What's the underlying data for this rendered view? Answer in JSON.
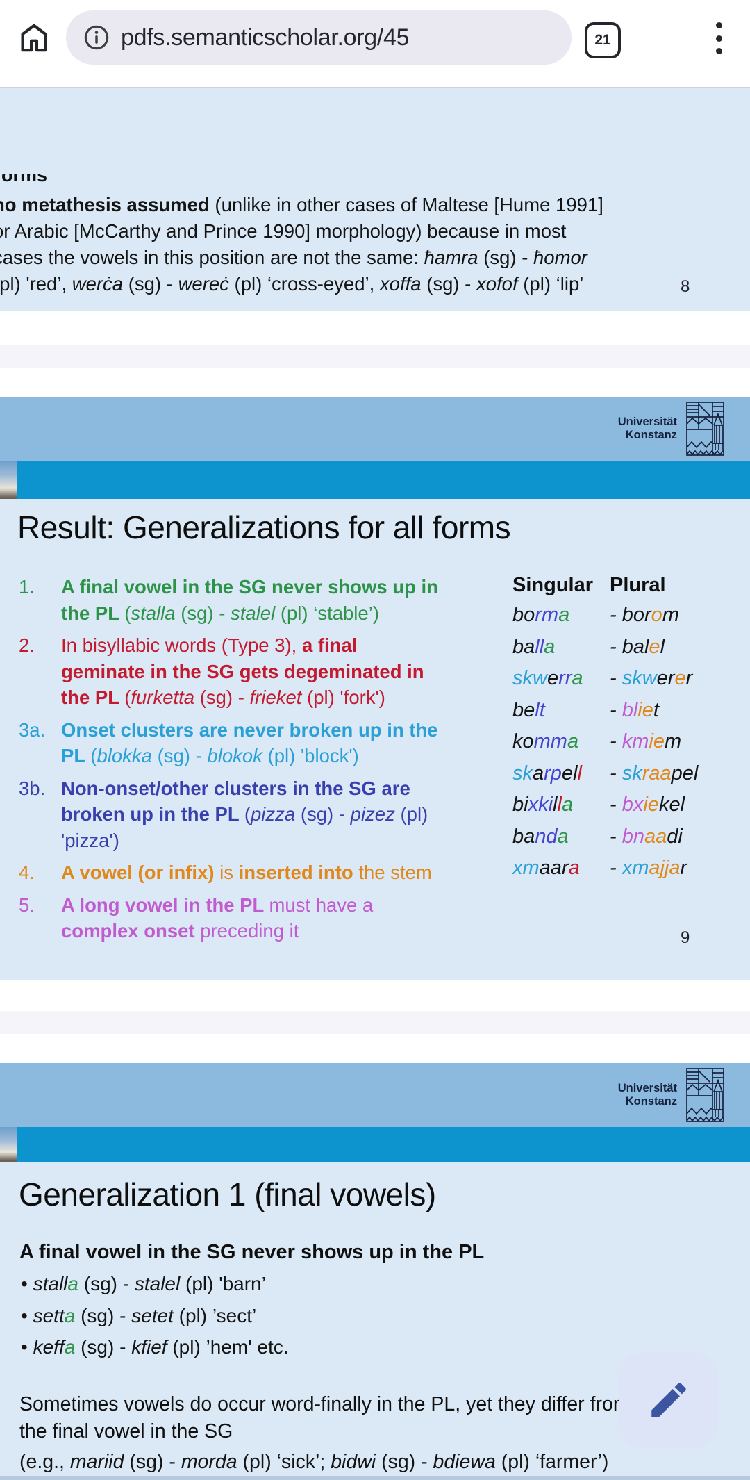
{
  "palette": {
    "k": "#141414",
    "bl": "#4444cf",
    "gr": "#2d9348",
    "cy": "#2ba0d6",
    "rd": "#c31a2f",
    "or": "#e0881c",
    "mg": "#c05ccf",
    "nv": "#3a3fae"
  },
  "chrome": {
    "url": "pdfs.semanticscholar.org/45",
    "tab_count": "21"
  },
  "slide1": {
    "fragment": "orms",
    "lines": [
      [
        {
          "t": "no metathesis assumed",
          "b": 1
        },
        {
          "t": " (unlike in other cases of Maltese [Hume 1991]"
        }
      ],
      [
        {
          "t": "or Arabic [McCarthy and Prince 1990] morphology) because in most"
        }
      ],
      [
        {
          "t": "cases the vowels in this position are not the same: "
        },
        {
          "t": "ħamra",
          "i": 1
        },
        {
          "t": " (sg) - "
        },
        {
          "t": "ħomor",
          "i": 1
        }
      ],
      [
        {
          "t": "(pl) 'red’, "
        },
        {
          "t": "werċa",
          "i": 1
        },
        {
          "t": " (sg) - "
        },
        {
          "t": "wereċ",
          "i": 1
        },
        {
          "t": " (pl) ‘cross-eyed’, "
        },
        {
          "t": "xoffa",
          "i": 1
        },
        {
          "t": " (sg) - "
        },
        {
          "t": "xofof",
          "i": 1
        },
        {
          "t": " (pl) ‘lip’"
        }
      ]
    ],
    "page_number": "8"
  },
  "university": {
    "wordmark_line1": "Universität",
    "wordmark_line2": "Konstanz"
  },
  "slide2": {
    "title": "Result: Generalizations for all forms",
    "items": [
      {
        "num": "1.",
        "color": "gr",
        "segs": [
          {
            "t": "A final vowel in the SG never shows up in the PL ",
            "b": 1
          },
          {
            "t": "("
          },
          {
            "t": "stalla",
            "i": 1
          },
          {
            "t": " (sg) - "
          },
          {
            "t": "stalel",
            "i": 1
          },
          {
            "t": " (pl) ‘stable’)"
          }
        ]
      },
      {
        "num": "2.",
        "color": "rd",
        "segs": [
          {
            "t": "In bisyllabic words (Type 3), "
          },
          {
            "t": "a final geminate in the SG gets degeminated in the PL ",
            "b": 1
          },
          {
            "t": "("
          },
          {
            "t": "furketta",
            "i": 1
          },
          {
            "t": " (sg) - "
          },
          {
            "t": "frieket",
            "i": 1
          },
          {
            "t": " (pl) 'fork')"
          }
        ]
      },
      {
        "num": "3a.",
        "color": "cy",
        "segs": [
          {
            "t": "Onset clusters are never broken up in the PL ",
            "b": 1
          },
          {
            "t": "("
          },
          {
            "t": "blokka",
            "i": 1
          },
          {
            "t": " (sg) - "
          },
          {
            "t": "blokok",
            "i": 1
          },
          {
            "t": " (pl) 'block')"
          }
        ]
      },
      {
        "num": "3b.",
        "color": "nv",
        "segs": [
          {
            "t": "Non-onset/other clusters in the SG are broken up in the PL ",
            "b": 1
          },
          {
            "t": "("
          },
          {
            "t": "pizza",
            "i": 1
          },
          {
            "t": " (sg) - "
          },
          {
            "t": "pizez",
            "i": 1
          },
          {
            "t": " (pl) 'pizza')"
          }
        ]
      },
      {
        "num": "4.",
        "color": "or",
        "segs": [
          {
            "t": "A vowel (or infix) ",
            "b": 1
          },
          {
            "t": "is "
          },
          {
            "t": "inserted into ",
            "b": 1
          },
          {
            "t": "the stem"
          }
        ]
      },
      {
        "num": "5.",
        "color": "mg",
        "segs": [
          {
            "t": "A long vowel in the PL ",
            "b": 1
          },
          {
            "t": "must have a "
          },
          {
            "t": "complex onset ",
            "b": 1
          },
          {
            "t": "preceding it"
          }
        ]
      }
    ],
    "table": {
      "header_singular": "Singular",
      "header_plural": "Plural",
      "rows": [
        {
          "sg": [
            {
              "t": "bo"
            },
            {
              "t": "rm",
              "c": "bl"
            },
            {
              "t": "a",
              "c": "gr"
            }
          ],
          "pl": [
            {
              "t": "- bor"
            },
            {
              "t": "o",
              "c": "or"
            },
            {
              "t": "m"
            }
          ]
        },
        {
          "sg": [
            {
              "t": "ba"
            },
            {
              "t": "ll",
              "c": "bl"
            },
            {
              "t": "a",
              "c": "gr"
            }
          ],
          "pl": [
            {
              "t": "- bal"
            },
            {
              "t": "e",
              "c": "or"
            },
            {
              "t": "l"
            }
          ]
        },
        {
          "sg": [
            {
              "t": "skw",
              "c": "cy"
            },
            {
              "t": "e"
            },
            {
              "t": "rr",
              "c": "bl"
            },
            {
              "t": "a",
              "c": "gr"
            }
          ],
          "pl": [
            {
              "t": "- "
            },
            {
              "t": "skw",
              "c": "cy"
            },
            {
              "t": "er"
            },
            {
              "t": "e",
              "c": "or"
            },
            {
              "t": "r"
            }
          ]
        },
        {
          "sg": [
            {
              "t": "be"
            },
            {
              "t": "lt",
              "c": "bl"
            }
          ],
          "pl": [
            {
              "t": "- "
            },
            {
              "t": "bl",
              "c": "mg"
            },
            {
              "t": "ie",
              "c": "or"
            },
            {
              "t": "t"
            }
          ]
        },
        {
          "sg": [
            {
              "t": "ko"
            },
            {
              "t": "mm",
              "c": "bl"
            },
            {
              "t": "a",
              "c": "gr"
            }
          ],
          "pl": [
            {
              "t": "- "
            },
            {
              "t": "km",
              "c": "mg"
            },
            {
              "t": "ie",
              "c": "or"
            },
            {
              "t": "m"
            }
          ]
        },
        {
          "sg": [
            {
              "t": "sk",
              "c": "cy"
            },
            {
              "t": "a"
            },
            {
              "t": "rp",
              "c": "bl"
            },
            {
              "t": "e"
            },
            {
              "t": "l"
            },
            {
              "t": "l",
              "c": "rd"
            }
          ],
          "pl": [
            {
              "t": "- "
            },
            {
              "t": "sk",
              "c": "cy"
            },
            {
              "t": "raa",
              "c": "or"
            },
            {
              "t": "pel"
            }
          ]
        },
        {
          "sg": [
            {
              "t": "bi"
            },
            {
              "t": "xki",
              "c": "bl"
            },
            {
              "t": "l"
            },
            {
              "t": "l",
              "c": "rd"
            },
            {
              "t": "a",
              "c": "gr"
            }
          ],
          "pl": [
            {
              "t": "- "
            },
            {
              "t": "bx",
              "c": "mg"
            },
            {
              "t": "ie",
              "c": "or"
            },
            {
              "t": "kel"
            }
          ]
        },
        {
          "sg": [
            {
              "t": "ba"
            },
            {
              "t": "nd",
              "c": "bl"
            },
            {
              "t": "a",
              "c": "gr"
            }
          ],
          "pl": [
            {
              "t": "- "
            },
            {
              "t": "bn",
              "c": "mg"
            },
            {
              "t": "aa",
              "c": "or"
            },
            {
              "t": "di"
            }
          ]
        },
        {
          "sg": [
            {
              "t": "xm",
              "c": "cy"
            },
            {
              "t": "aar"
            },
            {
              "t": "a",
              "c": "rd"
            }
          ],
          "pl": [
            {
              "t": "- "
            },
            {
              "t": "xm",
              "c": "cy"
            },
            {
              "t": "ajja",
              "c": "or"
            },
            {
              "t": "r"
            }
          ]
        }
      ]
    },
    "page_number": "9"
  },
  "slide3": {
    "title": "Generalization 1 (final vowels)",
    "statement": "A final vowel in the SG never shows up in the PL",
    "bullets": [
      [
        {
          "t": "• "
        },
        {
          "t": "stall",
          "i": 1
        },
        {
          "t": "a",
          "i": 1,
          "c": "gr"
        },
        {
          "t": " (sg) - "
        },
        {
          "t": "stalel",
          "i": 1
        },
        {
          "t": " (pl) 'barn’"
        }
      ],
      [
        {
          "t": "• "
        },
        {
          "t": "sett",
          "i": 1
        },
        {
          "t": "a",
          "i": 1,
          "c": "gr"
        },
        {
          "t": " (sg) - "
        },
        {
          "t": "setet",
          "i": 1
        },
        {
          "t": " (pl) ’sect’"
        }
      ],
      [
        {
          "t": "• "
        },
        {
          "t": "keff",
          "i": 1
        },
        {
          "t": "a",
          "i": 1,
          "c": "gr"
        },
        {
          "t": " (sg) - "
        },
        {
          "t": "kfief",
          "i": 1
        },
        {
          "t": " (pl) ’hem' etc."
        }
      ]
    ],
    "paragraph_line1": "Sometimes vowels do occur word-finally in the PL, yet they differ from",
    "paragraph_line2": "the final vowel in the SG",
    "example": [
      {
        "t": "(e.g., "
      },
      {
        "t": "mariid",
        "i": 1
      },
      {
        "t": " (sg) - "
      },
      {
        "t": "morda",
        "i": 1
      },
      {
        "t": " (pl) ‘sick’; "
      },
      {
        "t": "bidwi",
        "i": 1
      },
      {
        "t": " (sg) - "
      },
      {
        "t": "bdiewa",
        "i": 1
      },
      {
        "t": " (pl) ‘farmer’)"
      }
    ]
  }
}
